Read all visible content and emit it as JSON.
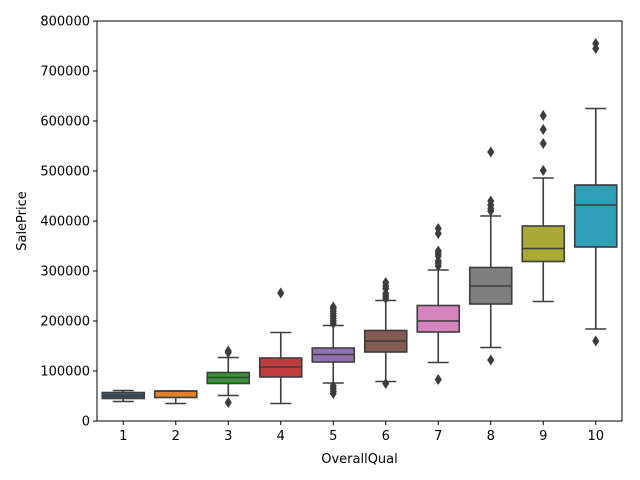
{
  "chart_data": {
    "type": "box",
    "title": "",
    "xlabel": "OverallQual",
    "ylabel": "SalePrice",
    "ylim": [
      0,
      800000
    ],
    "yticks": [
      "0",
      "100000",
      "200000",
      "300000",
      "400000",
      "500000",
      "600000",
      "700000",
      "800000"
    ],
    "yticks_values": [
      0,
      100000,
      200000,
      300000,
      400000,
      500000,
      600000,
      700000,
      800000
    ],
    "categories": [
      "1",
      "2",
      "3",
      "4",
      "5",
      "6",
      "7",
      "8",
      "9",
      "10"
    ],
    "boxes": [
      {
        "category": "1",
        "color": "#3b5b75",
        "q1": 45000,
        "median": 50000,
        "q3": 57000,
        "whisker_low": 39000,
        "whisker_high": 61000,
        "outliers": []
      },
      {
        "category": "2",
        "color": "#e1812c",
        "q1": 47000,
        "median": 60000,
        "q3": 60000,
        "whisker_low": 35000,
        "whisker_high": 60000,
        "outliers": []
      },
      {
        "category": "3",
        "color": "#3a923a",
        "q1": 75000,
        "median": 87000,
        "q3": 97000,
        "whisker_low": 51000,
        "whisker_high": 127000,
        "outliers": [
          37000,
          137000,
          140000
        ]
      },
      {
        "category": "4",
        "color": "#c03d3e",
        "q1": 88000,
        "median": 108000,
        "q3": 126000,
        "whisker_low": 35000,
        "whisker_high": 177000,
        "outliers": [
          256000
        ]
      },
      {
        "category": "5",
        "color": "#9372b2",
        "q1": 118000,
        "median": 133000,
        "q3": 146000,
        "whisker_low": 76000,
        "whisker_high": 191000,
        "outliers": [
          55000,
          60000,
          65000,
          70000,
          195000,
          200000,
          205000,
          210000,
          215000,
          220000,
          225000,
          228000
        ]
      },
      {
        "category": "6",
        "color": "#845b53",
        "q1": 138000,
        "median": 160000,
        "q3": 181000,
        "whisker_low": 79000,
        "whisker_high": 241000,
        "outliers": [
          75000,
          245000,
          250000,
          255000,
          265000,
          270000,
          277000
        ]
      },
      {
        "category": "7",
        "color": "#d684bd",
        "q1": 178000,
        "median": 200000,
        "q3": 231000,
        "whisker_low": 117000,
        "whisker_high": 302000,
        "outliers": [
          83000,
          310000,
          315000,
          320000,
          330000,
          335000,
          340000,
          375000,
          385000
        ]
      },
      {
        "category": "8",
        "color": "#7f7f7f",
        "q1": 234000,
        "median": 270000,
        "q3": 307000,
        "whisker_low": 147000,
        "whisker_high": 410000,
        "outliers": [
          122000,
          420000,
          425000,
          432000,
          440000,
          538000
        ]
      },
      {
        "category": "9",
        "color": "#a9aa35",
        "q1": 319000,
        "median": 345000,
        "q3": 390000,
        "whisker_low": 239000,
        "whisker_high": 486000,
        "outliers": [
          501000,
          555000,
          583000,
          611000
        ]
      },
      {
        "category": "10",
        "color": "#2ea0b8",
        "q1": 348000,
        "median": 432000,
        "q3": 472000,
        "whisker_low": 184000,
        "whisker_high": 625000,
        "outliers": [
          160000,
          745000,
          755000
        ]
      }
    ],
    "grid": false,
    "legend": "none"
  }
}
